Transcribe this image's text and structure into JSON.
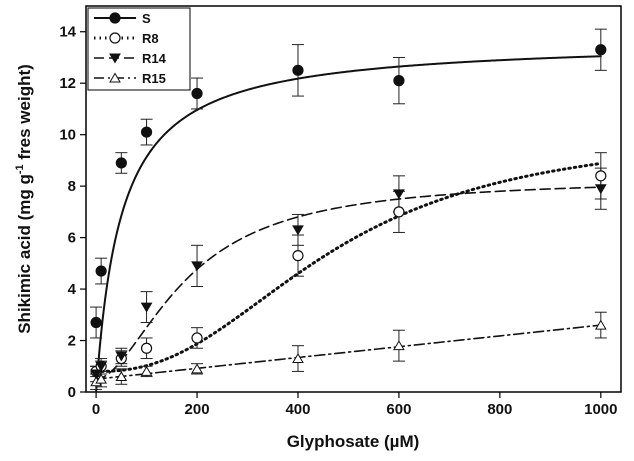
{
  "chart_data": {
    "type": "scatter",
    "xlabel": "Glyphosate (µM)",
    "ylabel_parts": {
      "main": "Shikimic acid (mg g",
      "sup": "-1",
      "tail": " fres weight)"
    },
    "xlim": [
      -20,
      1040
    ],
    "ylim": [
      0,
      15
    ],
    "x_ticks": [
      0,
      200,
      400,
      600,
      800,
      1000
    ],
    "y_ticks": [
      0,
      2,
      4,
      6,
      8,
      10,
      12,
      14
    ],
    "legend_position": "top-left",
    "series": [
      {
        "name": "S",
        "marker": "filled-circle",
        "line": "solid",
        "x": [
          0,
          10,
          50,
          100,
          200,
          400,
          600,
          1000
        ],
        "y": [
          2.7,
          4.7,
          8.9,
          10.1,
          11.6,
          12.5,
          12.1,
          13.3
        ],
        "err": [
          0.6,
          0.5,
          0.4,
          0.5,
          0.6,
          1.0,
          0.9,
          0.8
        ],
        "fit": {
          "ymax": 13.7,
          "k": 50,
          "n": 1
        }
      },
      {
        "name": "R8",
        "marker": "open-circle",
        "line": "dotted",
        "x": [
          0,
          10,
          50,
          100,
          200,
          400,
          600,
          1000
        ],
        "y": [
          0.8,
          1.0,
          1.3,
          1.7,
          2.1,
          5.3,
          7.0,
          8.4
        ],
        "err": [
          0.2,
          0.2,
          0.3,
          0.4,
          0.4,
          0.8,
          0.8,
          0.9
        ],
        "fit": {
          "ymax": 10.2,
          "k": 470,
          "n": 2.4,
          "base": 0.8
        }
      },
      {
        "name": "R14",
        "marker": "filled-triangle-down",
        "line": "dashed",
        "x": [
          0,
          10,
          50,
          100,
          200,
          400,
          600,
          1000
        ],
        "y": [
          0.7,
          1.0,
          1.4,
          3.3,
          4.9,
          6.3,
          7.7,
          7.9
        ],
        "err": [
          0.3,
          0.3,
          0.3,
          0.6,
          0.8,
          0.6,
          0.7,
          0.8
        ],
        "fit": {
          "ymax": 8.3,
          "k": 180,
          "n": 1.8,
          "base": 0.5
        }
      },
      {
        "name": "R15",
        "marker": "open-triangle-up",
        "line": "dashdot",
        "x": [
          0,
          10,
          50,
          100,
          200,
          400,
          600,
          1000
        ],
        "y": [
          0.4,
          0.5,
          0.6,
          0.8,
          0.9,
          1.3,
          1.8,
          2.6
        ],
        "err": [
          0.3,
          0.3,
          0.3,
          0.2,
          0.2,
          0.5,
          0.6,
          0.5
        ],
        "fit": {
          "linear": true,
          "a": 0.5,
          "b": 0.0021
        }
      }
    ]
  }
}
